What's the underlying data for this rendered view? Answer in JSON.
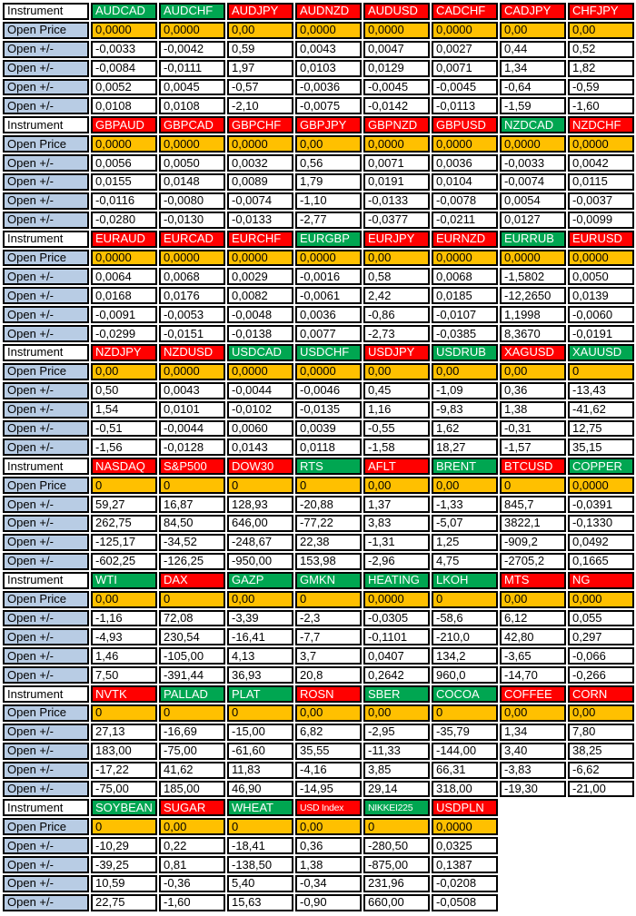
{
  "colors": {
    "green": "#00A651",
    "red": "#FF0000",
    "amber": "#FFC000",
    "label_blue": "#B8CCE4",
    "border": "#000000",
    "header_text": "#FFFFFF"
  },
  "table": {
    "corner_label": "Instrument",
    "price_label": "Open Price",
    "change_label": "Open +/-",
    "blocks": [
      {
        "instruments": [
          {
            "name": "AUDCAD",
            "color": "green",
            "open_price": "0,0000",
            "changes": [
              "-0,0033",
              "-0,0084",
              "0,0052",
              "0,0108"
            ]
          },
          {
            "name": "AUDCHF",
            "color": "green",
            "open_price": "0,0000",
            "changes": [
              "-0,0042",
              "-0,0111",
              "0,0045",
              "0,0108"
            ]
          },
          {
            "name": "AUDJPY",
            "color": "red",
            "open_price": "0,00",
            "changes": [
              "0,59",
              "1,97",
              "-0,57",
              "-2,10"
            ]
          },
          {
            "name": "AUDNZD",
            "color": "red",
            "open_price": "0,0000",
            "changes": [
              "0,0043",
              "0,0103",
              "-0,0036",
              "-0,0075"
            ]
          },
          {
            "name": "AUDUSD",
            "color": "red",
            "open_price": "0,0000",
            "changes": [
              "0,0047",
              "0,0129",
              "-0,0045",
              "-0,0142"
            ]
          },
          {
            "name": "CADCHF",
            "color": "red",
            "open_price": "0,0000",
            "changes": [
              "0,0027",
              "0,0071",
              "-0,0045",
              "-0,0113"
            ]
          },
          {
            "name": "CADJPY",
            "color": "red",
            "open_price": "0,00",
            "changes": [
              "0,44",
              "1,34",
              "-0,64",
              "-1,59"
            ]
          },
          {
            "name": "CHFJPY",
            "color": "red",
            "open_price": "0,00",
            "changes": [
              "0,52",
              "1,82",
              "-0,59",
              "-1,60"
            ]
          }
        ]
      },
      {
        "instruments": [
          {
            "name": "GBPAUD",
            "color": "red",
            "open_price": "0,0000",
            "changes": [
              "0,0056",
              "0,0155",
              "-0,0116",
              "-0,0280"
            ]
          },
          {
            "name": "GBPCAD",
            "color": "red",
            "open_price": "0,0000",
            "changes": [
              "0,0050",
              "0,0148",
              "-0,0080",
              "-0,0130"
            ]
          },
          {
            "name": "GBPCHF",
            "color": "red",
            "open_price": "0,0000",
            "changes": [
              "0,0032",
              "0,0089",
              "-0,0074",
              "-0,0133"
            ]
          },
          {
            "name": "GBPJPY",
            "color": "red",
            "open_price": "0,00",
            "changes": [
              "0,56",
              "1,79",
              "-1,10",
              "-2,77"
            ]
          },
          {
            "name": "GBPNZD",
            "color": "red",
            "open_price": "0,0000",
            "changes": [
              "0,0071",
              "0,0191",
              "-0,0133",
              "-0,0377"
            ]
          },
          {
            "name": "GBPUSD",
            "color": "red",
            "open_price": "0,0000",
            "changes": [
              "0,0036",
              "0,0104",
              "-0,0078",
              "-0,0211"
            ]
          },
          {
            "name": "NZDCAD",
            "color": "green",
            "open_price": "0,0000",
            "changes": [
              "-0,0033",
              "-0,0074",
              "0,0054",
              "0,0127"
            ]
          },
          {
            "name": "NZDCHF",
            "color": "red",
            "open_price": "0,0000",
            "changes": [
              "0,0042",
              "0,0115",
              "-0,0037",
              "-0,0099"
            ]
          }
        ]
      },
      {
        "instruments": [
          {
            "name": "EURAUD",
            "color": "red",
            "open_price": "0,0000",
            "changes": [
              "0,0064",
              "0,0168",
              "-0,0091",
              "-0,0299"
            ]
          },
          {
            "name": "EURCAD",
            "color": "red",
            "open_price": "0,0000",
            "changes": [
              "0,0068",
              "0,0176",
              "-0,0053",
              "-0,0151"
            ]
          },
          {
            "name": "EURCHF",
            "color": "red",
            "open_price": "0,0000",
            "changes": [
              "0,0029",
              "0,0082",
              "-0,0048",
              "-0,0138"
            ]
          },
          {
            "name": "EURGBP",
            "color": "green",
            "open_price": "0,0000",
            "changes": [
              "-0,0016",
              "-0,0061",
              "0,0036",
              "0,0077"
            ]
          },
          {
            "name": "EURJPY",
            "color": "red",
            "open_price": "0,00",
            "changes": [
              "0,58",
              "2,42",
              "-0,86",
              "-2,73"
            ]
          },
          {
            "name": "EURNZD",
            "color": "red",
            "open_price": "0,0000",
            "changes": [
              "0,0068",
              "0,0185",
              "-0,0107",
              "-0,0385"
            ]
          },
          {
            "name": "EURRUB",
            "color": "green",
            "open_price": "0,0000",
            "changes": [
              "-1,5802",
              "-12,2650",
              "1,1998",
              "8,3670"
            ]
          },
          {
            "name": "EURUSD",
            "color": "red",
            "open_price": "0,0000",
            "changes": [
              "0,0050",
              "0,0139",
              "-0,0060",
              "-0,0191"
            ]
          }
        ]
      },
      {
        "instruments": [
          {
            "name": "NZDJPY",
            "color": "red",
            "open_price": "0,00",
            "changes": [
              "0,50",
              "1,54",
              "-0,51",
              "-1,56"
            ]
          },
          {
            "name": "NZDUSD",
            "color": "red",
            "open_price": "0,0000",
            "changes": [
              "0,0043",
              "0,0101",
              "-0,0044",
              "-0,0128"
            ]
          },
          {
            "name": "USDCAD",
            "color": "green",
            "open_price": "0,0000",
            "changes": [
              "-0,0044",
              "-0,0102",
              "0,0060",
              "0,0143"
            ]
          },
          {
            "name": "USDCHF",
            "color": "green",
            "open_price": "0,0000",
            "changes": [
              "-0,0046",
              "-0,0135",
              "0,0039",
              "0,0118"
            ]
          },
          {
            "name": "USDJPY",
            "color": "red",
            "open_price": "0,00",
            "changes": [
              "0,45",
              "1,16",
              "-0,55",
              "-1,58"
            ]
          },
          {
            "name": "USDRUB",
            "color": "green",
            "open_price": "0,00",
            "changes": [
              "-1,09",
              "-9,83",
              "1,62",
              "18,27"
            ]
          },
          {
            "name": "XAGUSD",
            "color": "red",
            "open_price": "0,00",
            "changes": [
              "0,36",
              "1,38",
              "-0,31",
              "-1,57"
            ]
          },
          {
            "name": "XAUUSD",
            "color": "green",
            "open_price": "0",
            "changes": [
              "-13,43",
              "-41,62",
              "12,75",
              "35,15"
            ]
          }
        ]
      },
      {
        "instruments": [
          {
            "name": "NASDAQ",
            "color": "red",
            "open_price": "0",
            "changes": [
              "59,27",
              "262,75",
              "-125,17",
              "-602,25"
            ]
          },
          {
            "name": "S&P500",
            "color": "red",
            "open_price": "0",
            "changes": [
              "16,87",
              "84,50",
              "-34,52",
              "-126,25"
            ]
          },
          {
            "name": "DOW30",
            "color": "red",
            "open_price": "0",
            "changes": [
              "128,93",
              "646,00",
              "-248,67",
              "-950,00"
            ]
          },
          {
            "name": "RTS",
            "color": "green",
            "open_price": "0",
            "changes": [
              "-20,88",
              "-77,22",
              "22,38",
              "153,98"
            ]
          },
          {
            "name": "AFLT",
            "color": "red",
            "open_price": "0,00",
            "changes": [
              "1,37",
              "3,83",
              "-1,31",
              "-2,96"
            ]
          },
          {
            "name": "BRENT",
            "color": "green",
            "open_price": "0,00",
            "changes": [
              "-1,33",
              "-5,07",
              "1,25",
              "4,75"
            ]
          },
          {
            "name": "BTCUSD",
            "color": "red",
            "open_price": "0",
            "changes": [
              "845,7",
              "3822,1",
              "-909,2",
              "-2705,2"
            ]
          },
          {
            "name": "COPPER",
            "color": "green",
            "open_price": "0,0000",
            "changes": [
              "-0,0391",
              "-0,1330",
              "0,0492",
              "0,1665"
            ]
          }
        ]
      },
      {
        "instruments": [
          {
            "name": "WTI",
            "color": "green",
            "open_price": "0,00",
            "changes": [
              "-1,16",
              "-4,93",
              "1,46",
              "7,50"
            ]
          },
          {
            "name": "DAX",
            "color": "red",
            "open_price": "0",
            "changes": [
              "72,08",
              "230,54",
              "-105,00",
              "-391,44"
            ]
          },
          {
            "name": "GAZP",
            "color": "green",
            "open_price": "0,00",
            "changes": [
              "-3,39",
              "-16,41",
              "4,13",
              "36,93"
            ]
          },
          {
            "name": "GMKN",
            "color": "green",
            "open_price": "0",
            "changes": [
              "-2,3",
              "-7,7",
              "3,7",
              "20,8"
            ]
          },
          {
            "name": "HEATING",
            "color": "green",
            "open_price": "0,0000",
            "changes": [
              "-0,0305",
              "-0,1101",
              "0,0407",
              "0,2642"
            ]
          },
          {
            "name": "LKOH",
            "color": "green",
            "open_price": "0",
            "changes": [
              "-58,6",
              "-210,0",
              "134,2",
              "960,0"
            ]
          },
          {
            "name": "MTS",
            "color": "red",
            "open_price": "0,00",
            "changes": [
              "6,12",
              "42,80",
              "-3,65",
              "-14,70"
            ]
          },
          {
            "name": "NG",
            "color": "red",
            "open_price": "0,000",
            "changes": [
              "0,055",
              "0,297",
              "-0,066",
              "-0,266"
            ]
          }
        ]
      },
      {
        "instruments": [
          {
            "name": "NVTK",
            "color": "red",
            "open_price": "0",
            "changes": [
              "27,13",
              "183,00",
              "-17,22",
              "-75,00"
            ]
          },
          {
            "name": "PALLAD",
            "color": "green",
            "open_price": "0",
            "changes": [
              "-16,69",
              "-75,00",
              "41,62",
              "185,00"
            ]
          },
          {
            "name": "PLAT",
            "color": "green",
            "open_price": "0",
            "changes": [
              "-15,00",
              "-61,60",
              "11,83",
              "46,90"
            ]
          },
          {
            "name": "ROSN",
            "color": "red",
            "open_price": "0,00",
            "changes": [
              "6,82",
              "35,55",
              "-4,16",
              "-14,95"
            ]
          },
          {
            "name": "SBER",
            "color": "green",
            "open_price": "0,00",
            "changes": [
              "-2,95",
              "-11,33",
              "3,85",
              "29,14"
            ]
          },
          {
            "name": "COCOA",
            "color": "green",
            "open_price": "0",
            "changes": [
              "-35,79",
              "-144,00",
              "66,31",
              "318,00"
            ]
          },
          {
            "name": "COFFEE",
            "color": "red",
            "open_price": "0,00",
            "changes": [
              "1,34",
              "3,40",
              "-3,83",
              "-19,30"
            ]
          },
          {
            "name": "CORN",
            "color": "red",
            "open_price": "0,00",
            "changes": [
              "7,80",
              "38,25",
              "-6,62",
              "-21,00"
            ]
          }
        ]
      },
      {
        "instruments": [
          {
            "name": "SOYBEAN",
            "color": "green",
            "open_price": "0",
            "changes": [
              "-10,29",
              "-39,25",
              "10,59",
              "22,75"
            ]
          },
          {
            "name": "SUGAR",
            "color": "red",
            "open_price": "0,00",
            "changes": [
              "0,22",
              "0,81",
              "-0,36",
              "-1,60"
            ]
          },
          {
            "name": "WHEAT",
            "color": "green",
            "open_price": "0",
            "changes": [
              "-18,41",
              "-138,50",
              "5,40",
              "15,63"
            ]
          },
          {
            "name": "USD Index",
            "color": "red",
            "open_price": "0,00",
            "changes": [
              "0,36",
              "1,38",
              "-0,34",
              "-0,90"
            ]
          },
          {
            "name": "NIKKEI225",
            "color": "green",
            "open_price": "0",
            "changes": [
              "-280,50",
              "-875,00",
              "231,96",
              "660,00"
            ]
          },
          {
            "name": "USDPLN",
            "color": "red",
            "open_price": "0,0000",
            "changes": [
              "0,0325",
              "0,1387",
              "-0,0208",
              "-0,0508"
            ]
          }
        ]
      }
    ]
  }
}
